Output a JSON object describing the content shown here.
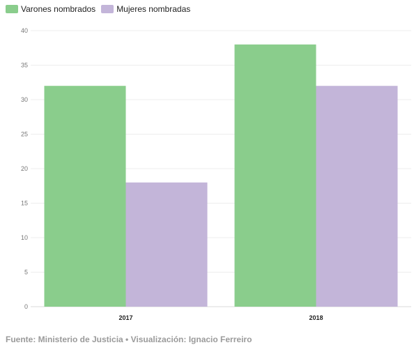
{
  "legend": [
    {
      "label": "Varones nombrados",
      "color": "#8acd8c"
    },
    {
      "label": "Mujeres nombradas",
      "color": "#c3b5d9"
    }
  ],
  "footer": "Fuente: Ministerio de Justicia • Visualización: Ignacio Ferreiro",
  "chart_data": {
    "type": "bar",
    "categories": [
      "2017",
      "2018"
    ],
    "series": [
      {
        "name": "Varones nombrados",
        "values": [
          32,
          38
        ],
        "color": "#8acd8c"
      },
      {
        "name": "Mujeres nombradas",
        "values": [
          18,
          32
        ],
        "color": "#c3b5d9"
      }
    ],
    "ylim": [
      0,
      40
    ],
    "yticks": [
      0,
      5,
      10,
      15,
      20,
      25,
      30,
      35,
      40
    ],
    "grid": true,
    "legend_position": "top-left"
  }
}
